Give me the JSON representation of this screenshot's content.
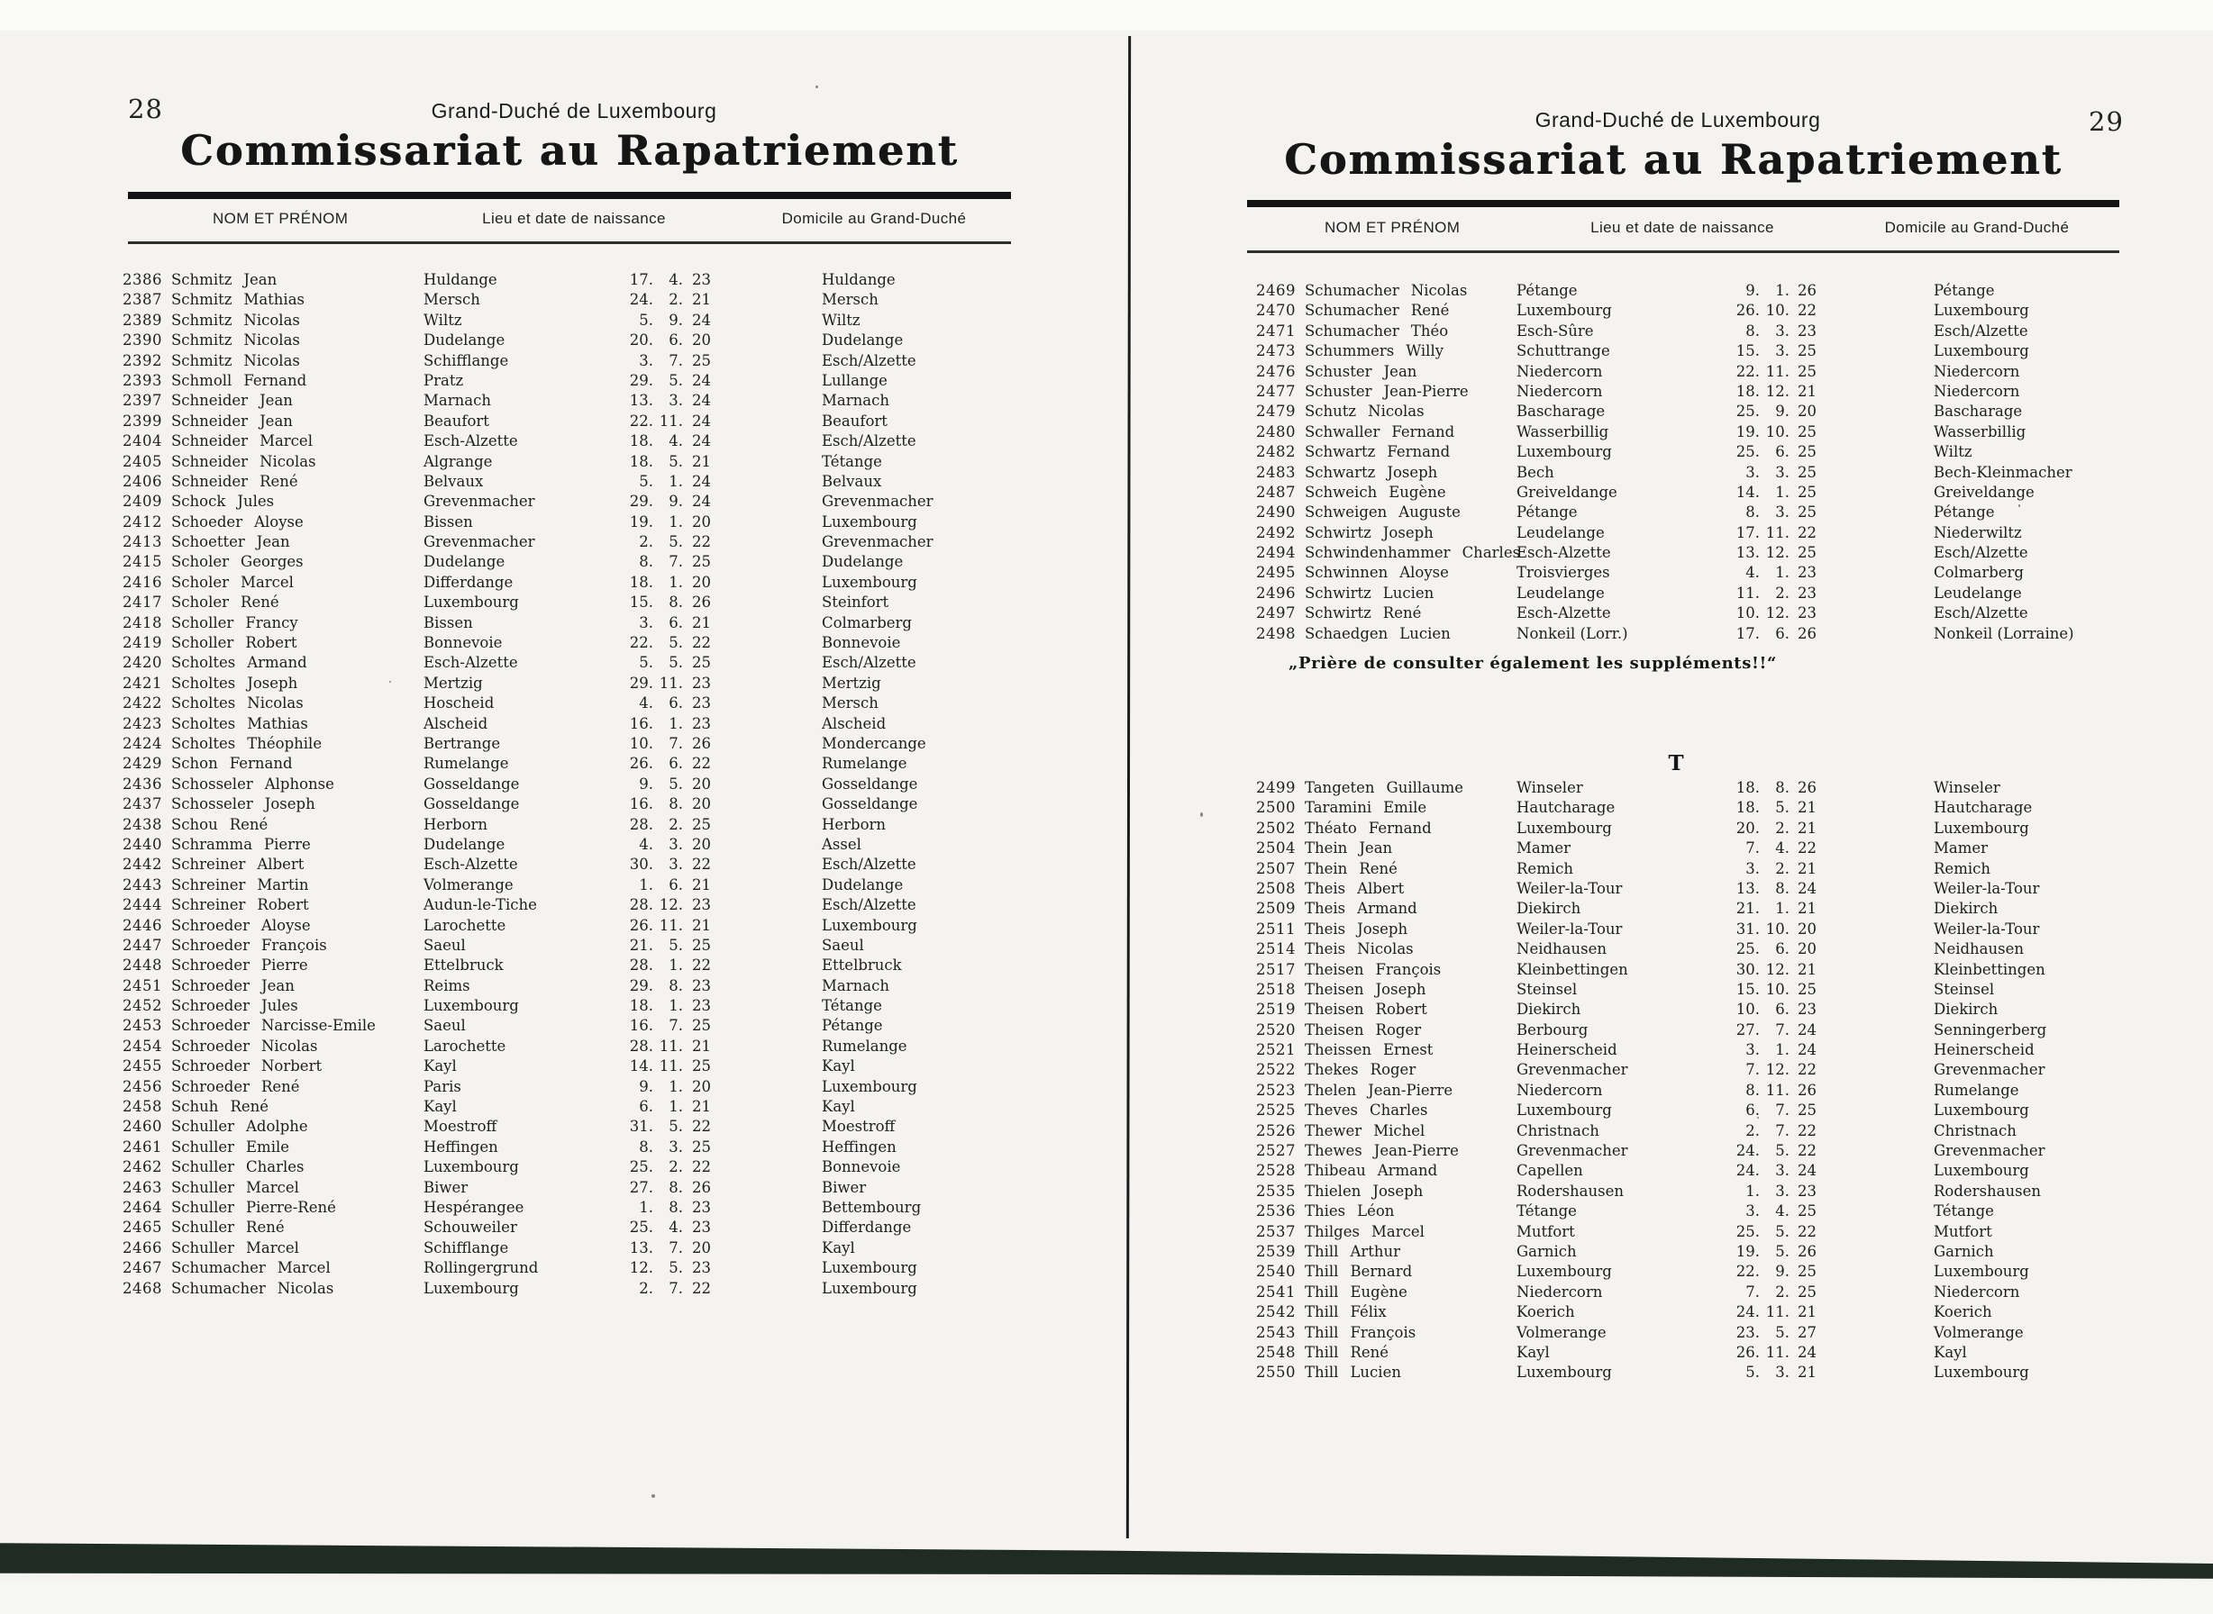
{
  "left_page": {
    "page_number": "28",
    "kicker": "Grand-Duché de Luxembourg",
    "title": "Commissariat au Rapatriement",
    "columns": [
      "NOM ET PRÉNOM",
      "Lieu et date de naissance",
      "Domicile au Grand-Duché"
    ],
    "rows": [
      [
        "2386",
        "Schmitz Jean",
        "Huldange",
        "17",
        "4",
        "23",
        "Huldange"
      ],
      [
        "2387",
        "Schmitz Mathias",
        "Mersch",
        "24",
        "2",
        "21",
        "Mersch"
      ],
      [
        "2389",
        "Schmitz Nicolas",
        "Wiltz",
        "5",
        "9",
        "24",
        "Wiltz"
      ],
      [
        "2390",
        "Schmitz Nicolas",
        "Dudelange",
        "20",
        "6",
        "20",
        "Dudelange"
      ],
      [
        "2392",
        "Schmitz Nicolas",
        "Schifflange",
        "3",
        "7",
        "25",
        "Esch/Alzette"
      ],
      [
        "2393",
        "Schmoll Fernand",
        "Pratz",
        "29",
        "5",
        "24",
        "Lullange"
      ],
      [
        "2397",
        "Schneider Jean",
        "Marnach",
        "13",
        "3",
        "24",
        "Marnach"
      ],
      [
        "2399",
        "Schneider Jean",
        "Beaufort",
        "22",
        "11",
        "24",
        "Beaufort"
      ],
      [
        "2404",
        "Schneider Marcel",
        "Esch-Alzette",
        "18",
        "4",
        "24",
        "Esch/Alzette"
      ],
      [
        "2405",
        "Schneider Nicolas",
        "Algrange",
        "18",
        "5",
        "21",
        "Tétange"
      ],
      [
        "2406",
        "Schneider René",
        "Belvaux",
        "5",
        "1",
        "24",
        "Belvaux"
      ],
      [
        "2409",
        "Schock Jules",
        "Grevenmacher",
        "29",
        "9",
        "24",
        "Grevenmacher"
      ],
      [
        "2412",
        "Schoeder Aloyse",
        "Bissen",
        "19",
        "1",
        "20",
        "Luxembourg"
      ],
      [
        "2413",
        "Schoetter Jean",
        "Grevenmacher",
        "2",
        "5",
        "22",
        "Grevenmacher"
      ],
      [
        "2415",
        "Scholer Georges",
        "Dudelange",
        "8",
        "7",
        "25",
        "Dudelange"
      ],
      [
        "2416",
        "Scholer Marcel",
        "Differdange",
        "18",
        "1",
        "20",
        "Luxembourg"
      ],
      [
        "2417",
        "Scholer René",
        "Luxembourg",
        "15",
        "8",
        "26",
        "Steinfort"
      ],
      [
        "2418",
        "Scholler Francy",
        "Bissen",
        "3",
        "6",
        "21",
        "Colmarberg"
      ],
      [
        "2419",
        "Scholler Robert",
        "Bonnevoie",
        "22",
        "5",
        "22",
        "Bonnevoie"
      ],
      [
        "2420",
        "Scholtes Armand",
        "Esch-Alzette",
        "5",
        "5",
        "25",
        "Esch/Alzette"
      ],
      [
        "2421",
        "Scholtes Joseph",
        "Mertzig",
        "29",
        "11",
        "23",
        "Mertzig"
      ],
      [
        "2422",
        "Scholtes Nicolas",
        "Hoscheid",
        "4",
        "6",
        "23",
        "Mersch"
      ],
      [
        "2423",
        "Scholtes Mathias",
        "Alscheid",
        "16",
        "1",
        "23",
        "Alscheid"
      ],
      [
        "2424",
        "Scholtes Théophile",
        "Bertrange",
        "10",
        "7",
        "26",
        "Mondercange"
      ],
      [
        "2429",
        "Schon Fernand",
        "Rumelange",
        "26",
        "6",
        "22",
        "Rumelange"
      ],
      [
        "2436",
        "Schosseler Alphonse",
        "Gosseldange",
        "9",
        "5",
        "20",
        "Gosseldange"
      ],
      [
        "2437",
        "Schosseler Joseph",
        "Gosseldange",
        "16",
        "8",
        "20",
        "Gosseldange"
      ],
      [
        "2438",
        "Schou René",
        "Herborn",
        "28",
        "2",
        "25",
        "Herborn"
      ],
      [
        "2440",
        "Schramma Pierre",
        "Dudelange",
        "4",
        "3",
        "20",
        "Assel"
      ],
      [
        "2442",
        "Schreiner Albert",
        "Esch-Alzette",
        "30",
        "3",
        "22",
        "Esch/Alzette"
      ],
      [
        "2443",
        "Schreiner Martin",
        "Volmerange",
        "1",
        "6",
        "21",
        "Dudelange"
      ],
      [
        "2444",
        "Schreiner Robert",
        "Audun-le-Tiche",
        "28",
        "12",
        "23",
        "Esch/Alzette"
      ],
      [
        "2446",
        "Schroeder Aloyse",
        "Larochette",
        "26",
        "11",
        "21",
        "Luxembourg"
      ],
      [
        "2447",
        "Schroeder François",
        "Saeul",
        "21",
        "5",
        "25",
        "Saeul"
      ],
      [
        "2448",
        "Schroeder Pierre",
        "Ettelbruck",
        "28",
        "1",
        "22",
        "Ettelbruck"
      ],
      [
        "2451",
        "Schroeder Jean",
        "Reims",
        "29",
        "8",
        "23",
        "Marnach"
      ],
      [
        "2452",
        "Schroeder Jules",
        "Luxembourg",
        "18",
        "1",
        "23",
        "Tétange"
      ],
      [
        "2453",
        "Schroeder Narcisse-Emile",
        "Saeul",
        "16",
        "7",
        "25",
        "Pétange"
      ],
      [
        "2454",
        "Schroeder Nicolas",
        "Larochette",
        "28",
        "11",
        "21",
        "Rumelange"
      ],
      [
        "2455",
        "Schroeder Norbert",
        "Kayl",
        "14",
        "11",
        "25",
        "Kayl"
      ],
      [
        "2456",
        "Schroeder René",
        "Paris",
        "9",
        "1",
        "20",
        "Luxembourg"
      ],
      [
        "2458",
        "Schuh René",
        "Kayl",
        "6",
        "1",
        "21",
        "Kayl"
      ],
      [
        "2460",
        "Schuller Adolphe",
        "Moestroff",
        "31",
        "5",
        "22",
        "Moestroff"
      ],
      [
        "2461",
        "Schuller Emile",
        "Heffingen",
        "8",
        "3",
        "25",
        "Heffingen"
      ],
      [
        "2462",
        "Schuller Charles",
        "Luxembourg",
        "25",
        "2",
        "22",
        "Bonnevoie"
      ],
      [
        "2463",
        "Schuller Marcel",
        "Biwer",
        "27",
        "8",
        "26",
        "Biwer"
      ],
      [
        "2464",
        "Schuller Pierre-René",
        "Hespérangee",
        "1",
        "8",
        "23",
        "Bettembourg"
      ],
      [
        "2465",
        "Schuller René",
        "Schouweiler",
        "25",
        "4",
        "23",
        "Differdange"
      ],
      [
        "2466",
        "Schuller Marcel",
        "Schifflange",
        "13",
        "7",
        "20",
        "Kayl"
      ],
      [
        "2467",
        "Schumacher Marcel",
        "Rollingergrund",
        "12",
        "5",
        "23",
        "Luxembourg"
      ],
      [
        "2468",
        "Schumacher Nicolas",
        "Luxembourg",
        "2",
        "7",
        "22",
        "Luxembourg"
      ]
    ]
  },
  "right_page": {
    "page_number": "29",
    "kicker": "Grand-Duché de Luxembourg",
    "title": "Commissariat au Rapatriement",
    "columns": [
      "NOM ET PRÉNOM",
      "Lieu et date de naissance",
      "Domicile au Grand-Duché"
    ],
    "s_rows": [
      [
        "2469",
        "Schumacher Nicolas",
        "Pétange",
        "9",
        "1",
        "26",
        "Pétange"
      ],
      [
        "2470",
        "Schumacher René",
        "Luxembourg",
        "26",
        "10",
        "22",
        "Luxembourg"
      ],
      [
        "2471",
        "Schumacher Théo",
        "Esch-Sûre",
        "8",
        "3",
        "23",
        "Esch/Alzette"
      ],
      [
        "2473",
        "Schummers Willy",
        "Schuttrange",
        "15",
        "3",
        "25",
        "Luxembourg"
      ],
      [
        "2476",
        "Schuster Jean",
        "Niedercorn",
        "22",
        "11",
        "25",
        "Niedercorn"
      ],
      [
        "2477",
        "Schuster Jean-Pierre",
        "Niedercorn",
        "18",
        "12",
        "21",
        "Niedercorn"
      ],
      [
        "2479",
        "Schutz Nicolas",
        "Bascharage",
        "25",
        "9",
        "20",
        "Bascharage"
      ],
      [
        "2480",
        "Schwaller Fernand",
        "Wasserbillig",
        "19",
        "10",
        "25",
        "Wasserbillig"
      ],
      [
        "2482",
        "Schwartz Fernand",
        "Luxembourg",
        "25",
        "6",
        "25",
        "Wiltz"
      ],
      [
        "2483",
        "Schwartz Joseph",
        "Bech",
        "3",
        "3",
        "25",
        "Bech-Kleinmacher"
      ],
      [
        "2487",
        "Schweich Eugène",
        "Greiveldange",
        "14",
        "1",
        "25",
        "Greiveldange"
      ],
      [
        "2490",
        "Schweigen Auguste",
        "Pétange",
        "8",
        "3",
        "25",
        "Pétange"
      ],
      [
        "2492",
        "Schwirtz Joseph",
        "Leudelange",
        "17",
        "11",
        "22",
        "Niederwiltz"
      ],
      [
        "2494",
        "Schwindenhammer Charles",
        "Esch-Alzette",
        "13",
        "12",
        "25",
        "Esch/Alzette"
      ],
      [
        "2495",
        "Schwinnen Aloyse",
        "Troisvierges",
        "4",
        "1",
        "23",
        "Colmarberg"
      ],
      [
        "2496",
        "Schwirtz Lucien",
        "Leudelange",
        "11",
        "2",
        "23",
        "Leudelange"
      ],
      [
        "2497",
        "Schwirtz René",
        "Esch-Alzette",
        "10",
        "12",
        "23",
        "Esch/Alzette"
      ],
      [
        "2498",
        "Schaedgen Lucien",
        "Nonkeil (Lorr.)",
        "17",
        "6",
        "26",
        "Nonkeil (Lorraine)"
      ]
    ],
    "note": "„Prière de consulter également les suppléments!!“",
    "section_letter": "T",
    "t_rows": [
      [
        "2499",
        "Tangeten Guillaume",
        "Winseler",
        "18",
        "8",
        "26",
        "Winseler"
      ],
      [
        "2500",
        "Taramini Emile",
        "Hautcharage",
        "18",
        "5",
        "21",
        "Hautcharage"
      ],
      [
        "2502",
        "Théato Fernand",
        "Luxembourg",
        "20",
        "2",
        "21",
        "Luxembourg"
      ],
      [
        "2504",
        "Thein Jean",
        "Mamer",
        "7",
        "4",
        "22",
        "Mamer"
      ],
      [
        "2507",
        "Thein René",
        "Remich",
        "3",
        "2",
        "21",
        "Remich"
      ],
      [
        "2508",
        "Theis Albert",
        "Weiler-la-Tour",
        "13",
        "8",
        "24",
        "Weiler-la-Tour"
      ],
      [
        "2509",
        "Theis Armand",
        "Diekirch",
        "21",
        "1",
        "21",
        "Diekirch"
      ],
      [
        "2511",
        "Theis Joseph",
        "Weiler-la-Tour",
        "31",
        "10",
        "20",
        "Weiler-la-Tour"
      ],
      [
        "2514",
        "Theis Nicolas",
        "Neidhausen",
        "25",
        "6",
        "20",
        "Neidhausen"
      ],
      [
        "2517",
        "Theisen François",
        "Kleinbettingen",
        "30",
        "12",
        "21",
        "Kleinbettingen"
      ],
      [
        "2518",
        "Theisen Joseph",
        "Steinsel",
        "15",
        "10",
        "25",
        "Steinsel"
      ],
      [
        "2519",
        "Theisen Robert",
        "Diekirch",
        "10",
        "6",
        "23",
        "Diekirch"
      ],
      [
        "2520",
        "Theisen Roger",
        "Berbourg",
        "27",
        "7",
        "24",
        "Senningerberg"
      ],
      [
        "2521",
        "Theissen Ernest",
        "Heinerscheid",
        "3",
        "1",
        "24",
        "Heinerscheid"
      ],
      [
        "2522",
        "Thekes Roger",
        "Grevenmacher",
        "7",
        "12",
        "22",
        "Grevenmacher"
      ],
      [
        "2523",
        "Thelen Jean-Pierre",
        "Niedercorn",
        "8",
        "11",
        "26",
        "Rumelange"
      ],
      [
        "2525",
        "Theves Charles",
        "Luxembourg",
        "6",
        "7",
        "25",
        "Luxembourg"
      ],
      [
        "2526",
        "Thewer Michel",
        "Christnach",
        "2",
        "7",
        "22",
        "Christnach"
      ],
      [
        "2527",
        "Thewes Jean-Pierre",
        "Grevenmacher",
        "24",
        "5",
        "22",
        "Grevenmacher"
      ],
      [
        "2528",
        "Thibeau Armand",
        "Capellen",
        "24",
        "3",
        "24",
        "Luxembourg"
      ],
      [
        "2535",
        "Thielen Joseph",
        "Rodershausen",
        "1",
        "3",
        "23",
        "Rodershausen"
      ],
      [
        "2536",
        "Thies Léon",
        "Tétange",
        "3",
        "4",
        "25",
        "Tétange"
      ],
      [
        "2537",
        "Thilges Marcel",
        "Mutfort",
        "25",
        "5",
        "22",
        "Mutfort"
      ],
      [
        "2539",
        "Thill Arthur",
        "Garnich",
        "19",
        "5",
        "26",
        "Garnich"
      ],
      [
        "2540",
        "Thill Bernard",
        "Luxembourg",
        "22",
        "9",
        "25",
        "Luxembourg"
      ],
      [
        "2541",
        "Thill Eugène",
        "Niedercorn",
        "7",
        "2",
        "25",
        "Niedercorn"
      ],
      [
        "2542",
        "Thill Félix",
        "Koerich",
        "24",
        "11",
        "21",
        "Koerich"
      ],
      [
        "2543",
        "Thill François",
        "Volmerange",
        "23",
        "5",
        "27",
        "Volmerange"
      ],
      [
        "2548",
        "Thill René",
        "Kayl",
        "26",
        "11",
        "24",
        "Kayl"
      ],
      [
        "2550",
        "Thill Lucien",
        "Luxembourg",
        "5",
        "3",
        "21",
        "Luxembourg"
      ]
    ]
  },
  "colors": {
    "ink": "#1e1e1e",
    "paper": "#f4f3f0",
    "book_edge_band": "#1f2b24"
  }
}
